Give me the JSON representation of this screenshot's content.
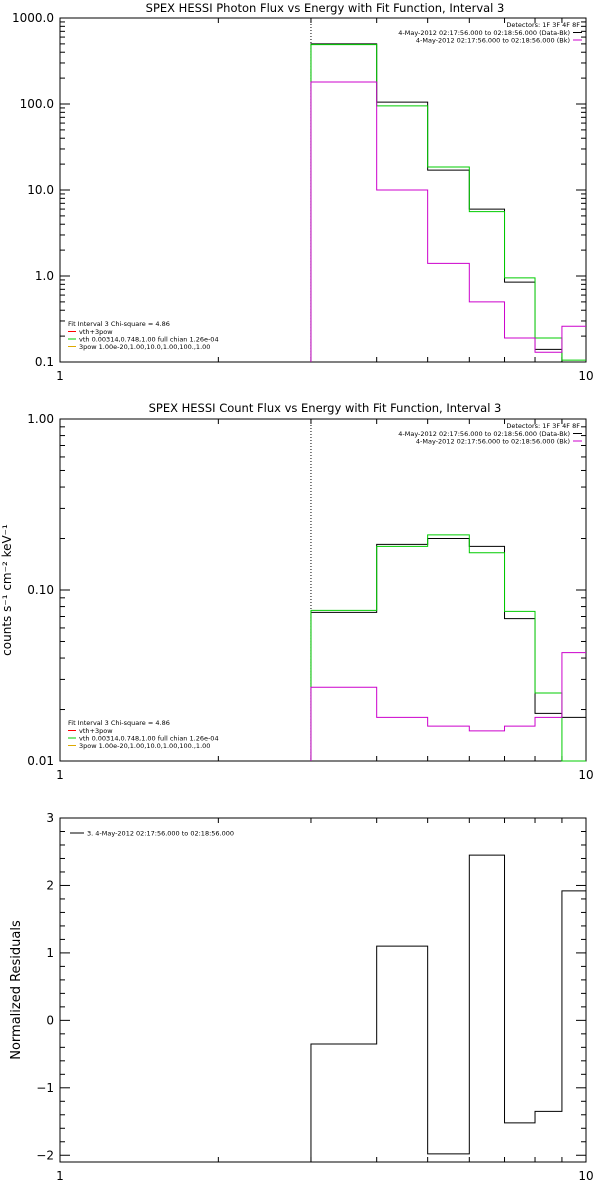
{
  "chart_data": [
    {
      "type": "line",
      "title": "SPEX HESSI Photon Flux vs Energy with Fit Function, Interval 3",
      "xlabel": "",
      "ylabel": "",
      "xscale": "log",
      "yscale": "log",
      "xlim": [
        1,
        10
      ],
      "ylim": [
        0.1,
        1000
      ],
      "x_ticks": [
        "1",
        "10"
      ],
      "y_ticks": [
        "0.1",
        "1.0",
        "10.0",
        "100.0",
        "1000.0"
      ],
      "marker_line_x": 3,
      "legend_top": {
        "header": "Detectors: 1F 3F 4F 8F",
        "lines": [
          {
            "text": "4-May-2012 02:17:56.000 to 02:18:56.000 (Data-Bk)",
            "color": "#000000"
          },
          {
            "text": "4-May-2012 02:17:56.000 to 02:18:56.000 (Bk)",
            "color": "#cc00cc"
          }
        ]
      },
      "legend_bottom": {
        "header": "Fit Interval 3   Chi-square = 4.86",
        "lines": [
          {
            "text": "vth+3pow",
            "color": "#ff0000"
          },
          {
            "text": "vth 0.00314,0.748,1.00   full chian 1.26e-04",
            "color": "#00cc00"
          },
          {
            "text": "3pow 1.00e-20,1.00,10.0,1.00,100.,1.00",
            "color": "#ddaa00"
          }
        ]
      },
      "bin_edges": [
        3,
        4,
        5,
        6,
        7,
        8,
        9,
        10
      ],
      "series": [
        {
          "color": "#000000",
          "values": [
            500,
            105,
            17,
            6,
            0.85,
            0.14,
            0.1
          ]
        },
        {
          "color": "#00cc00",
          "values": [
            490,
            95,
            18.5,
            5.6,
            0.95,
            0.19,
            0.105
          ]
        },
        {
          "color": "#cc00cc",
          "values": [
            180,
            10,
            1.4,
            0.5,
            0.19,
            0.13,
            0.26
          ]
        }
      ]
    },
    {
      "type": "line",
      "title": "SPEX HESSI Count Flux vs Energy with Fit Function, Interval 3",
      "xlabel": "",
      "ylabel": "counts s⁻¹ cm⁻² keV⁻¹",
      "xscale": "log",
      "yscale": "log",
      "xlim": [
        1,
        10
      ],
      "ylim": [
        0.01,
        1.0
      ],
      "x_ticks": [
        "1",
        "10"
      ],
      "y_ticks": [
        "0.01",
        "0.10",
        "1.00"
      ],
      "marker_line_x": 3,
      "legend_top": {
        "header": "Detectors: 1F 3F 4F 8F",
        "lines": [
          {
            "text": "4-May-2012 02:17:56.000 to 02:18:56.000 (Data-Bk)",
            "color": "#000000"
          },
          {
            "text": "4-May-2012 02:17:56.000 to 02:18:56.000 (Bk)",
            "color": "#cc00cc"
          }
        ]
      },
      "legend_bottom": {
        "header": "Fit Interval 3   Chi-square = 4.86",
        "lines": [
          {
            "text": "vth+3pow",
            "color": "#ff0000"
          },
          {
            "text": "vth 0.00314,0.748,1.00   full chian 1.26e-04",
            "color": "#00cc00"
          },
          {
            "text": "3pow 1.00e-20,1.00,10.0,1.00,100.,1.00",
            "color": "#ddaa00"
          }
        ]
      },
      "bin_edges": [
        3,
        4,
        5,
        6,
        7,
        8,
        9,
        10
      ],
      "series": [
        {
          "color": "#000000",
          "values": [
            0.074,
            0.185,
            0.2,
            0.18,
            0.068,
            0.019,
            0.018
          ]
        },
        {
          "color": "#00cc00",
          "values": [
            0.076,
            0.18,
            0.21,
            0.165,
            0.075,
            0.025,
            0.01
          ]
        },
        {
          "color": "#cc00cc",
          "values": [
            0.027,
            0.018,
            0.016,
            0.015,
            0.016,
            0.018,
            0.043
          ]
        }
      ]
    },
    {
      "type": "line",
      "title": "",
      "xlabel": "",
      "ylabel": "Normalized Residuals",
      "xscale": "log",
      "yscale": "linear",
      "xlim": [
        1,
        10
      ],
      "ylim": [
        -2.1,
        3
      ],
      "x_ticks": [
        "1",
        "10"
      ],
      "y_ticks": [
        "−2",
        "−1",
        "0",
        "1",
        "2",
        "3"
      ],
      "legend_top": {
        "header": "",
        "lines": [
          {
            "text": "3.  4-May-2012 02:17:56.000 to 02:18:56.000",
            "color": "#000000"
          }
        ]
      },
      "bin_edges": [
        3,
        4,
        5,
        6,
        7,
        8,
        9,
        10
      ],
      "series": [
        {
          "color": "#000000",
          "values": [
            -0.35,
            1.1,
            -1.98,
            2.45,
            -1.52,
            -1.35,
            1.92
          ]
        }
      ]
    }
  ]
}
